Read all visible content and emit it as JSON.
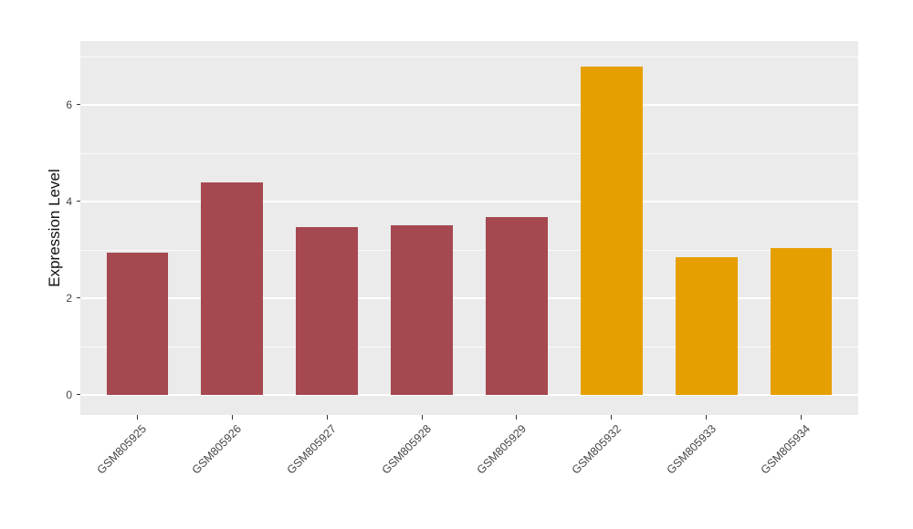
{
  "figure": {
    "background": "#FFFFFF"
  },
  "chart_data": {
    "type": "bar",
    "title": "",
    "xlabel": "",
    "ylabel": "Expression Level",
    "categories": [
      "GSM805925",
      "GSM805926",
      "GSM805927",
      "GSM805928",
      "GSM805929",
      "GSM805932",
      "GSM805933",
      "GSM805934"
    ],
    "values": [
      2.94,
      4.4,
      3.47,
      3.51,
      3.68,
      6.8,
      2.85,
      3.04
    ],
    "bar_colors": [
      "#A5484F",
      "#A5484F",
      "#A5484F",
      "#A5484F",
      "#A5484F",
      "#E69F00",
      "#E69F00",
      "#E69F00"
    ],
    "group_colors": {
      "maroon_group": "#A5484F",
      "orange_group": "#E69F00"
    },
    "ylim": [
      0,
      6.8
    ],
    "yticks": [
      0,
      2,
      4,
      6
    ],
    "ytick_labels": [
      "0",
      "2",
      "4",
      "6"
    ],
    "minor_gridlines": [
      1,
      3,
      5,
      7
    ],
    "panel_background": "#EBEBEB",
    "grid_color": "#FFFFFF",
    "axis_text_color": "#454545",
    "legend": "none",
    "grid": "on"
  }
}
